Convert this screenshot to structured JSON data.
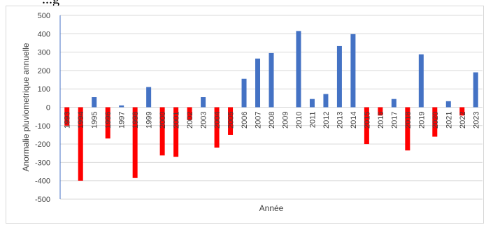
{
  "header_fragment": "...g",
  "chart_data": {
    "type": "bar",
    "title": "",
    "xlabel": "Année",
    "ylabel": "Anormalie pluviometrique annuelle",
    "ylim": [
      -500,
      500
    ],
    "yticks": [
      500,
      400,
      300,
      200,
      100,
      0,
      -100,
      -200,
      -300,
      -400,
      -500
    ],
    "grid": true,
    "categories": [
      "1993",
      "1994",
      "1995",
      "1996",
      "1997",
      "1998",
      "1999",
      "2000",
      "2001",
      "2002",
      "2003",
      "2004",
      "2005",
      "2006",
      "2007",
      "2008",
      "2009",
      "2010",
      "2011",
      "2012",
      "2013",
      "2014",
      "2015",
      "2016",
      "2017",
      "2018",
      "2019",
      "2020",
      "2021",
      "2022",
      "2023"
    ],
    "tick_labels": [
      "1993",
      "1994",
      "1995",
      "1996",
      "1997",
      "1998",
      "1999",
      "2000",
      "2001",
      "2002",
      "2003",
      "2004",
      "2005",
      "2006",
      "2007",
      "2008",
      "2009",
      "2010",
      "2011",
      "2012",
      "2013",
      "2014",
      "2015",
      "2016",
      "2017",
      "2018",
      "2019",
      "2020",
      "2021",
      "2022",
      "2023"
    ],
    "values": [
      -100,
      -400,
      55,
      -170,
      10,
      -385,
      110,
      -262,
      -270,
      -70,
      55,
      -220,
      -150,
      155,
      265,
      295,
      0,
      415,
      45,
      72,
      333,
      398,
      -200,
      -45,
      45,
      -235,
      288,
      -160,
      33,
      -45,
      190
    ],
    "colors": {
      "positive": "#4472c4",
      "negative": "#ff0000"
    }
  }
}
